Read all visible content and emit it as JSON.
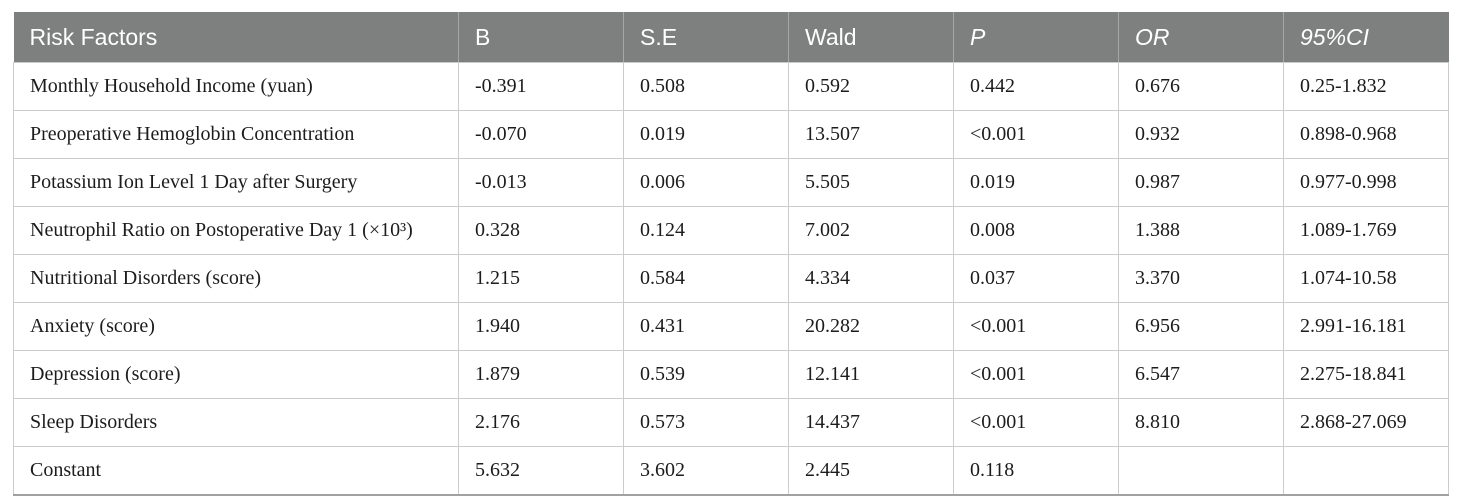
{
  "colors": {
    "header_background": "#7e807f",
    "header_text": "#ffffff",
    "body_text": "#1c1c1c",
    "grid_line": "#cbcccd",
    "header_divider": "#a6a8a8",
    "bottom_border": "#9fa1a2"
  },
  "table": {
    "columns": [
      "Risk Factors",
      "B",
      "S.E",
      "Wald",
      "P",
      "OR",
      "95%CI"
    ],
    "rows": [
      [
        "Monthly Household Income (yuan)",
        "-0.391",
        "0.508",
        "0.592",
        "0.442",
        "0.676",
        "0.25-1.832"
      ],
      [
        "Preoperative Hemoglobin Concentration",
        "-0.070",
        "0.019",
        "13.507",
        "<0.001",
        "0.932",
        "0.898-0.968"
      ],
      [
        "Potassium Ion Level 1 Day after Surgery",
        "-0.013",
        "0.006",
        "5.505",
        "0.019",
        "0.987",
        "0.977-0.998"
      ],
      [
        "Neutrophil Ratio on Postoperative Day 1 (×10³)",
        "0.328",
        "0.124",
        "7.002",
        "0.008",
        "1.388",
        "1.089-1.769"
      ],
      [
        "Nutritional Disorders (score)",
        "1.215",
        "0.584",
        "4.334",
        "0.037",
        "3.370",
        "1.074-10.58"
      ],
      [
        "Anxiety (score)",
        "1.940",
        "0.431",
        "20.282",
        "<0.001",
        "6.956",
        "2.991-16.181"
      ],
      [
        "Depression (score)",
        "1.879",
        "0.539",
        "12.141",
        "<0.001",
        "6.547",
        "2.275-18.841"
      ],
      [
        "Sleep Disorders",
        "2.176",
        "0.573",
        "14.437",
        "<0.001",
        "8.810",
        "2.868-27.069"
      ],
      [
        "Constant",
        "5.632",
        "3.602",
        "2.445",
        "0.118",
        "",
        ""
      ]
    ]
  }
}
